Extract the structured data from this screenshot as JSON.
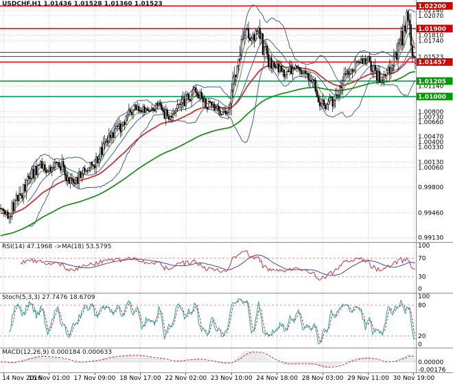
{
  "colors": {
    "bg": "#ffffff",
    "grid": "#c8c8c8",
    "candle": "#000000",
    "bollinger": "#3d5c9e",
    "ma_red": "#d03030",
    "ma_green": "#1d8f1d",
    "hline_red": "#ee1111",
    "hline_green": "#00a651",
    "box_red": "#d40000",
    "box_green": "#009b00",
    "rsi_line": "#c03344",
    "rsi_ma": "#4040b0",
    "level_dash": "#cc9999",
    "stoch_k": "#1fa3a3",
    "stoch_d": "#cc2222",
    "macd_hist": "#ababab",
    "macd_signal": "#cc2222",
    "separator": "#8a8a8a",
    "axis_text": "#000000",
    "support_line": "#3c3c3c"
  },
  "chart_data": {
    "type": "candlestick",
    "symbol": "USDCHF",
    "timeframe": "H1",
    "title_line": "USDCHF,H1 1.01436 1.01528 1.01360 1.01523",
    "last_bar": {
      "open": 1.01436,
      "high": 1.01528,
      "low": 1.0136,
      "close": 1.01523
    },
    "bars": 292,
    "ylim": [
      0.991,
      1.0226
    ],
    "price_path": [
      [
        0,
        0.9952
      ],
      [
        5,
        0.9944
      ],
      [
        10,
        0.996
      ],
      [
        16,
        0.9976
      ],
      [
        22,
        0.9996
      ],
      [
        28,
        1.001
      ],
      [
        34,
        1.0002
      ],
      [
        40,
        1.0016
      ],
      [
        46,
        0.9994
      ],
      [
        52,
        0.9986
      ],
      [
        58,
        1.0001
      ],
      [
        66,
        1.0012
      ],
      [
        74,
        1.0036
      ],
      [
        82,
        1.0056
      ],
      [
        90,
        1.0076
      ],
      [
        96,
        1.0086
      ],
      [
        104,
        1.008
      ],
      [
        112,
        1.0089
      ],
      [
        118,
        1.007
      ],
      [
        124,
        1.0082
      ],
      [
        130,
        1.0096
      ],
      [
        136,
        1.0108
      ],
      [
        142,
        1.0098
      ],
      [
        148,
        1.0086
      ],
      [
        154,
        1.0078
      ],
      [
        160,
        1.0081
      ],
      [
        164,
        1.0126
      ],
      [
        168,
        1.0166
      ],
      [
        172,
        1.019
      ],
      [
        176,
        1.0177
      ],
      [
        180,
        1.0188
      ],
      [
        184,
        1.0164
      ],
      [
        188,
        1.0146
      ],
      [
        194,
        1.0138
      ],
      [
        200,
        1.0128
      ],
      [
        206,
        1.0141
      ],
      [
        212,
        1.0132
      ],
      [
        218,
        1.012
      ],
      [
        224,
        1.0096
      ],
      [
        228,
        1.0086
      ],
      [
        232,
        1.0093
      ],
      [
        238,
        1.0113
      ],
      [
        244,
        1.0131
      ],
      [
        250,
        1.0143
      ],
      [
        256,
        1.0149
      ],
      [
        262,
        1.0133
      ],
      [
        268,
        1.0119
      ],
      [
        274,
        1.0141
      ],
      [
        278,
        1.0156
      ],
      [
        282,
        1.0181
      ],
      [
        285,
        1.0206
      ],
      [
        287,
        1.0196
      ],
      [
        289,
        1.0166
      ],
      [
        291,
        1.0152
      ]
    ],
    "y_axis_labels": [
      "1.02140",
      "1.02070",
      "1.01810",
      "1.01740",
      "1.01140",
      "1.00800",
      "1.00730",
      "1.00660",
      "1.00470",
      "1.00400",
      "1.00330",
      "1.00130",
      "1.00060",
      "0.99800",
      "0.99460",
      "0.99130"
    ],
    "current_price": {
      "label": "1.01523",
      "value": 1.01523
    },
    "support_lines": [
      1.01585,
      1.0153
    ],
    "hlines": [
      {
        "price": 1.022,
        "label": "1.02200",
        "color": "red"
      },
      {
        "price": 1.019,
        "label": "1.01900",
        "color": "red"
      },
      {
        "price": 1.01457,
        "label": "1.01457",
        "color": "red"
      },
      {
        "price": 1.01205,
        "label": "1.01205",
        "color": "green"
      },
      {
        "price": 1.01,
        "label": "1.01000",
        "color": "green"
      }
    ],
    "x_labels": [
      {
        "text": "14 Nov 2016",
        "bar": 2
      },
      {
        "text": "16 Nov 01:00",
        "bar": 34
      },
      {
        "text": "17 Nov 09:00",
        "bar": 66
      },
      {
        "text": "18 Nov 17:00",
        "bar": 98
      },
      {
        "text": "22 Nov 02:00",
        "bar": 130
      },
      {
        "text": "23 Nov 10:00",
        "bar": 162
      },
      {
        "text": "24 Nov 18:00",
        "bar": 194
      },
      {
        "text": "28 Nov 03:00",
        "bar": 226
      },
      {
        "text": "29 Nov 11:00",
        "bar": 258
      },
      {
        "text": "30 Nov 19:00",
        "bar": 290
      }
    ],
    "indicators": {
      "rsi": {
        "label": "RSI(14) 47.1968 ->MA(18) 53.5795",
        "period": 14,
        "ma_period": 18,
        "levels": [
          70,
          30
        ],
        "axis_labels": [
          "100",
          "70",
          "30",
          "0"
        ]
      },
      "stoch": {
        "label": "Stoch(5,3,3) 27.7476 18.6709",
        "k": 5,
        "slowing": 3,
        "d": 3,
        "levels": [
          80,
          20
        ],
        "axis_labels": [
          "100",
          "80",
          "20",
          "0"
        ]
      },
      "macd": {
        "label": "MACD(12,26,9) 0.000184 0.000633",
        "fast": 12,
        "slow": 26,
        "signal": 9,
        "axis_labels": [
          {
            "text": "0.00000",
            "value": 0
          },
          {
            "text": "-0.00176",
            "value": -0.00176
          }
        ]
      }
    },
    "render_hints": {
      "bollinger_period": 20,
      "bollinger_dev": 2,
      "ma_mid_period": 48,
      "ma_mid_seed": 0.9945,
      "ma_slow_period": 120,
      "ma_slow_seed": 0.9915,
      "ma_fast_red": 5,
      "ma_fast_green": 10,
      "seed": 42
    }
  }
}
